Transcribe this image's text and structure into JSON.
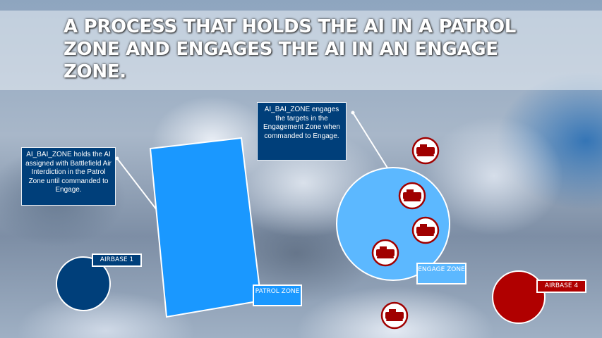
{
  "title": "A PROCESS THAT HOLDS THE AI IN A PATROL ZONE AND ENGAGES THE AI IN AN ENGAGE ZONE.",
  "callouts": {
    "patrol": "AI_BAI_ZONE holds the AI assigned with Battlefield Air Interdiction in the Patrol Zone until commanded to Engage.",
    "engage": "AI_BAI_ZONE engages the targets in the Engagement Zone when commanded to Engage."
  },
  "labels": {
    "patrol_zone": "PATROL ZONE",
    "engage_zone": "ENGAGE ZONE",
    "airbase1": "AIRBASE 1",
    "airbase4": "AIRBASE 4"
  },
  "colors": {
    "patrol": "#1a98ff",
    "engage": "#5cb8ff",
    "blue_base": "#003f7a",
    "red_base": "#b00000",
    "target": "#a00000"
  },
  "targets": {
    "icon": "armored-vehicle-icon",
    "count": 5
  }
}
